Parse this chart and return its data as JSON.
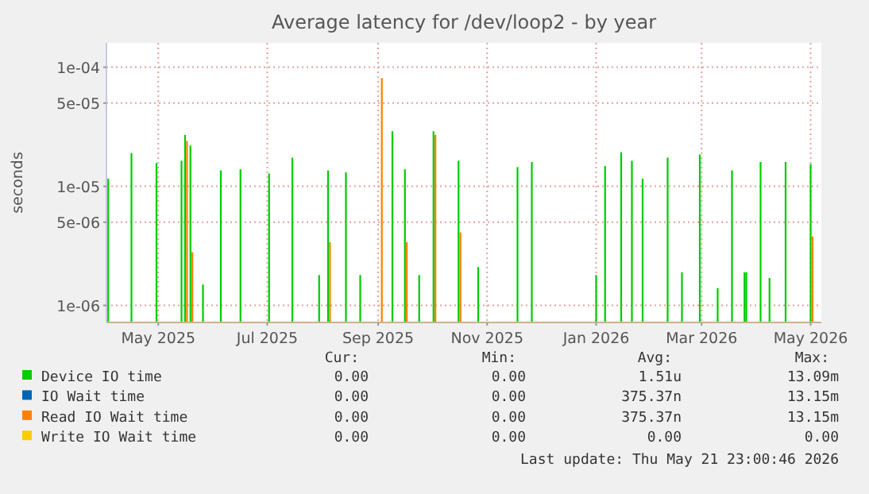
{
  "chart_data": {
    "type": "bar",
    "title": "Average latency for /dev/loop2 - by year",
    "ylabel": "seconds",
    "log": true,
    "grid": true,
    "legend": "bottom",
    "xlim": [
      "2025-04-16",
      "2026-05-21"
    ],
    "xticks": [
      {
        "value": "2025-05-15",
        "label": "May 2025"
      },
      {
        "value": "2025-07-15",
        "label": "Jul 2025"
      },
      {
        "value": "2025-09-15",
        "label": "Sep 2025"
      },
      {
        "value": "2025-11-15",
        "label": "Nov 2025"
      },
      {
        "value": "2026-01-15",
        "label": "Jan 2026"
      },
      {
        "value": "2026-03-15",
        "label": "Mar 2026"
      },
      {
        "value": "2026-05-15",
        "label": "May 2026"
      }
    ],
    "ylim": [
      7.2e-07,
      0.00016
    ],
    "yticks": [
      {
        "value": 1e-06,
        "label": "1e-06"
      },
      {
        "value": 5e-06,
        "label": "5e-06"
      },
      {
        "value": 1e-05,
        "label": "1e-05"
      },
      {
        "value": 5e-05,
        "label": "5e-05"
      },
      {
        "value": 0.0001,
        "label": "1e-04"
      }
    ],
    "x": [
      "2025-04-17",
      "2025-04-30",
      "2025-05-14",
      "2025-05-28",
      "2025-05-30",
      "2025-06-02",
      "2025-06-09",
      "2025-06-19",
      "2025-06-30",
      "2025-07-16",
      "2025-07-29",
      "2025-08-13",
      "2025-08-18",
      "2025-08-28",
      "2025-09-05",
      "2025-09-16",
      "2025-09-23",
      "2025-09-30",
      "2025-10-08",
      "2025-10-16",
      "2025-10-30",
      "2025-11-10",
      "2025-12-02",
      "2025-12-10",
      "2026-01-15",
      "2026-01-20",
      "2026-01-29",
      "2026-02-04",
      "2026-02-10",
      "2026-02-24",
      "2026-03-04",
      "2026-03-14",
      "2026-03-24",
      "2026-04-01",
      "2026-04-08",
      "2026-04-09",
      "2026-04-17",
      "2026-04-22",
      "2026-05-01",
      "2026-05-15"
    ],
    "series": [
      {
        "name": "Device IO time",
        "color": "#00cc00",
        "values": [
          1.16e-05,
          1.9e-05,
          1.57e-05,
          1.64e-05,
          2.7e-05,
          2.2e-05,
          1.5e-06,
          1.36e-05,
          1.39e-05,
          1.28e-05,
          1.74e-05,
          1.8e-06,
          1.36e-05,
          1.31e-05,
          1.8e-06,
          null,
          2.9e-05,
          1.39e-05,
          1.8e-06,
          2.9e-05,
          1.64e-05,
          2.1e-06,
          1.45e-05,
          1.6e-05,
          1.8e-06,
          1.48e-05,
          1.93e-05,
          1.64e-05,
          1.16e-05,
          1.74e-05,
          1.9e-06,
          1.85e-05,
          1.4e-06,
          1.36e-05,
          1.9e-06,
          1.9e-06,
          1.6e-05,
          1.7e-06,
          1.6e-05,
          1.54e-05
        ]
      },
      {
        "name": "IO Wait time",
        "color": "#0066b3",
        "values": [
          null,
          null,
          null,
          null,
          null,
          null,
          null,
          null,
          null,
          null,
          null,
          null,
          null,
          null,
          null,
          null,
          null,
          null,
          null,
          null,
          null,
          null,
          null,
          null,
          null,
          null,
          null,
          null,
          null,
          null,
          null,
          null,
          null,
          null,
          null,
          null,
          null,
          null,
          null,
          null
        ]
      },
      {
        "name": "Read IO Wait time",
        "color": "#ff8000",
        "values": [
          null,
          null,
          null,
          null,
          2.4e-05,
          2.8e-06,
          null,
          null,
          null,
          null,
          null,
          null,
          3.4e-06,
          null,
          null,
          8.1e-05,
          null,
          3.4e-06,
          null,
          2.7e-05,
          4.1e-06,
          null,
          null,
          null,
          null,
          null,
          null,
          null,
          null,
          null,
          null,
          null,
          null,
          null,
          null,
          null,
          null,
          null,
          null,
          3.8e-06
        ]
      },
      {
        "name": "Write IO Wait time",
        "color": "#ffcc00",
        "values": [
          null,
          null,
          null,
          null,
          null,
          null,
          null,
          null,
          null,
          null,
          null,
          null,
          null,
          null,
          null,
          null,
          null,
          null,
          null,
          null,
          null,
          null,
          null,
          null,
          null,
          null,
          null,
          null,
          null,
          null,
          null,
          null,
          null,
          null,
          null,
          null,
          null,
          null,
          null,
          null
        ]
      }
    ],
    "annotations": [
      "Cur:",
      "Min:",
      "Avg:",
      "Max:",
      "0.00",
      "0.00",
      "1.51u",
      "13.09m",
      "0.00",
      "0.00",
      "375.37n",
      "13.15m",
      "0.00",
      "0.00",
      "375.37n",
      "13.15m",
      "0.00",
      "0.00",
      "0.00",
      "0.00",
      "Last update: Thu May 21 23:00:46 2026"
    ]
  }
}
